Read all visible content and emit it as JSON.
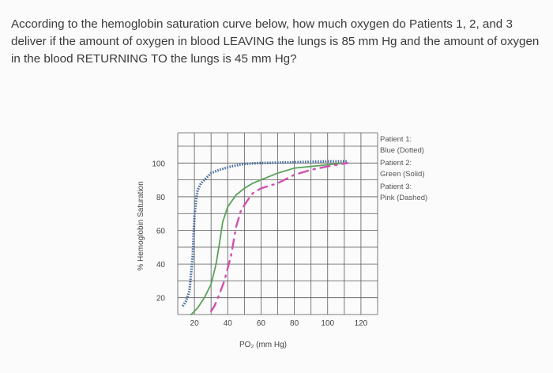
{
  "question": {
    "text": "According to the hemoglobin saturation curve below, how much oxygen do Patients 1, 2, and 3 deliver if the amount of oxygen in blood LEAVING the lungs is 85 mm Hg and the amount of oxygen in the blood RETURNING TO the lungs is 45 mm Hg?"
  },
  "chart_data": {
    "type": "line",
    "xlabel": "PO₂ (mm Hg)",
    "ylabel": "% Hemoglobin Saturation",
    "xticks": [
      "20",
      "40",
      "60",
      "80",
      "100",
      "120"
    ],
    "yticks": [
      "100",
      "80",
      "60",
      "40",
      "20"
    ],
    "xlim": [
      10,
      130
    ],
    "ylim": [
      10,
      118
    ],
    "grid": true,
    "legend_position": "right",
    "legend": [
      [
        "Patient 1:",
        "Blue (Dotted)"
      ],
      [
        "Patient 2:",
        "Green (Solid)"
      ],
      [
        "Patient 3:",
        "Pink (Dashed)"
      ]
    ],
    "series": [
      {
        "name": "Patient 1",
        "color": "#4a6fa0",
        "style": "dotted",
        "x": [
          13,
          15,
          17,
          19,
          20,
          21,
          22,
          24,
          27,
          30,
          35,
          42,
          50,
          60,
          80,
          100,
          112
        ],
        "y": [
          15,
          18,
          24,
          45,
          68,
          78,
          84,
          88,
          91,
          94,
          96,
          98,
          99.5,
          100,
          100.5,
          101,
          101
        ]
      },
      {
        "name": "Patient 2",
        "color": "#5aa05a",
        "style": "solid",
        "x": [
          18,
          22,
          26,
          30,
          33,
          35,
          37,
          40,
          45,
          50,
          55,
          60,
          70,
          80,
          90,
          100,
          110
        ],
        "y": [
          10,
          14,
          20,
          28,
          40,
          52,
          65,
          74,
          81,
          85,
          88,
          90,
          94,
          97,
          98,
          99,
          100
        ]
      },
      {
        "name": "Patient 3",
        "color": "#d050b0",
        "style": "dashed",
        "x": [
          30,
          32,
          35,
          38,
          42,
          45,
          48,
          52,
          55,
          60,
          70,
          80,
          90,
          100,
          112
        ],
        "y": [
          12,
          15,
          22,
          30,
          45,
          62,
          72,
          78,
          82,
          85,
          88,
          93,
          96,
          98,
          100
        ]
      }
    ]
  }
}
